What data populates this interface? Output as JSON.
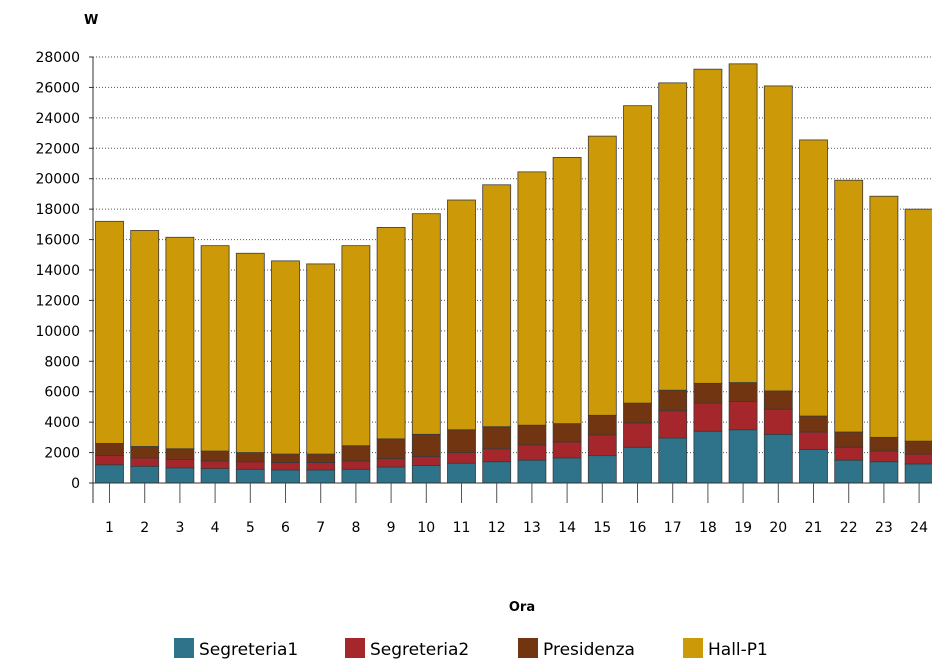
{
  "chart_data": {
    "type": "bar",
    "stacked": true,
    "ylabel": "W",
    "xlabel": "Ora",
    "ylim": [
      0,
      28000
    ],
    "yticks": [
      0,
      2000,
      4000,
      6000,
      8000,
      10000,
      12000,
      14000,
      16000,
      18000,
      20000,
      22000,
      24000,
      26000,
      28000
    ],
    "grid": "horizontal-dotted",
    "legend_position": "bottom",
    "categories": [
      "1",
      "2",
      "3",
      "4",
      "5",
      "6",
      "7",
      "8",
      "9",
      "10",
      "11",
      "12",
      "13",
      "14",
      "15",
      "16",
      "17",
      "18",
      "19",
      "20",
      "21",
      "22",
      "23",
      "24"
    ],
    "series": [
      {
        "name": "Segreteria1",
        "color": "#2e7389",
        "values": [
          1200,
          1100,
          1000,
          950,
          900,
          850,
          850,
          900,
          1050,
          1150,
          1300,
          1400,
          1500,
          1650,
          1800,
          2350,
          2950,
          3400,
          3500,
          3200,
          2200,
          1500,
          1400,
          1250
        ]
      },
      {
        "name": "Segreteria2",
        "color": "#a5262b",
        "values": [
          600,
          550,
          550,
          500,
          500,
          500,
          500,
          550,
          550,
          600,
          700,
          850,
          1000,
          1050,
          1350,
          1600,
          1800,
          1850,
          1850,
          1650,
          1150,
          850,
          700,
          650
        ]
      },
      {
        "name": "Presidenza",
        "color": "#713512",
        "values": [
          800,
          750,
          700,
          650,
          600,
          550,
          550,
          1000,
          1300,
          1450,
          1500,
          1450,
          1300,
          1200,
          1300,
          1300,
          1350,
          1300,
          1250,
          1200,
          1050,
          1000,
          900,
          850
        ]
      },
      {
        "name": "Hall-P1",
        "color": "#cc9a08",
        "values": [
          14600,
          14200,
          13900,
          13500,
          13100,
          12700,
          12500,
          13150,
          13900,
          14500,
          15100,
          15900,
          16650,
          17500,
          18350,
          19550,
          20200,
          20650,
          20950,
          20050,
          18150,
          16550,
          15850,
          15250
        ]
      }
    ]
  }
}
